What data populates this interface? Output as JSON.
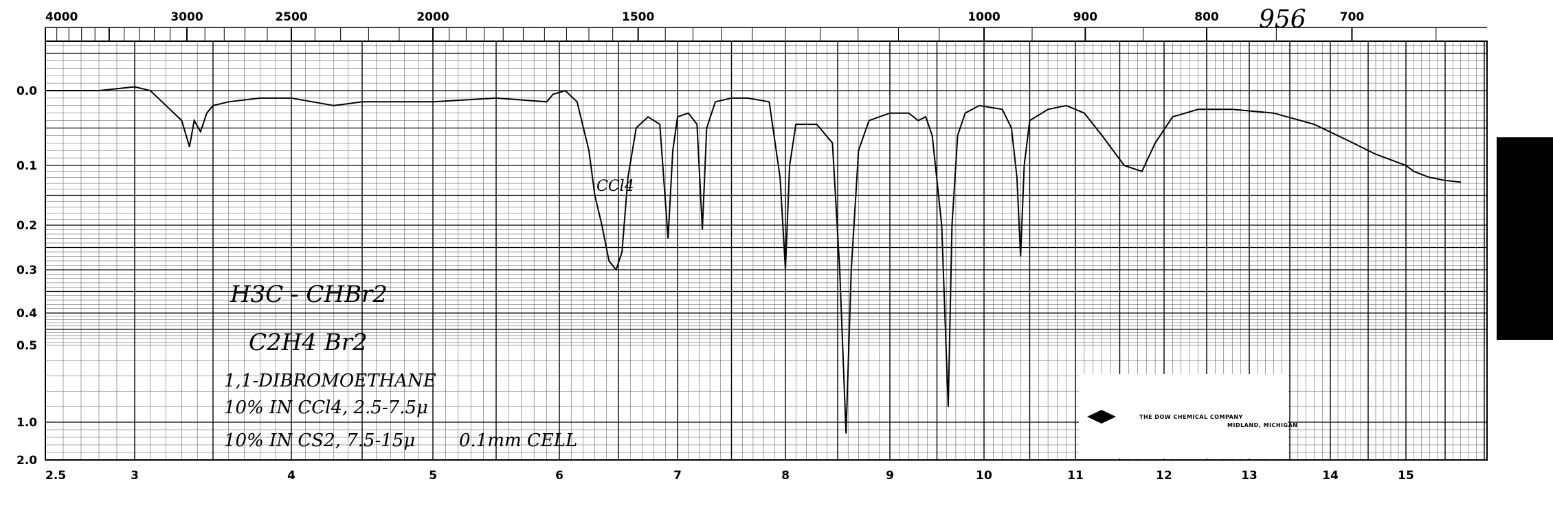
{
  "chart_data": {
    "type": "line",
    "title": "",
    "top_axis": {
      "label": "",
      "ticks": [
        "4000",
        "3000",
        "2500",
        "2000",
        "1500",
        "1000",
        "900",
        "800",
        "700"
      ],
      "values": [
        4000,
        3000,
        2500,
        2000,
        1500,
        1000,
        900,
        800,
        700
      ]
    },
    "bottom_axis": {
      "label": "",
      "ticks": [
        "2.5",
        "3",
        "4",
        "5",
        "6",
        "7",
        "8",
        "9",
        "10",
        "11",
        "12",
        "13",
        "14",
        "15"
      ],
      "values": [
        2.5,
        3,
        4,
        5,
        6,
        7,
        8,
        9,
        10,
        11,
        12,
        13,
        14,
        15
      ],
      "xlim": [
        2.5,
        16
      ]
    },
    "left_axis": {
      "label": "",
      "ticks": [
        "0.0",
        "0.1",
        "0.2",
        "0.3",
        "0.4",
        "0.5",
        "1.0",
        "2.0"
      ],
      "values": [
        0.0,
        0.1,
        0.2,
        0.3,
        0.4,
        0.5,
        1.0,
        2.0
      ],
      "scale": "absorbance (log transmittance)"
    },
    "grid": true,
    "series": [
      {
        "x_unit": "micrometers",
        "y_unit": "absorbance",
        "points": [
          [
            2.5,
            0.0
          ],
          [
            2.8,
            0.0
          ],
          [
            3.0,
            -0.005
          ],
          [
            3.1,
            0.0
          ],
          [
            3.2,
            0.02
          ],
          [
            3.3,
            0.04
          ],
          [
            3.35,
            0.075
          ],
          [
            3.38,
            0.04
          ],
          [
            3.42,
            0.055
          ],
          [
            3.46,
            0.03
          ],
          [
            3.5,
            0.02
          ],
          [
            3.6,
            0.015
          ],
          [
            3.8,
            0.01
          ],
          [
            4.0,
            0.01
          ],
          [
            4.3,
            0.02
          ],
          [
            4.5,
            0.015
          ],
          [
            5.0,
            0.015
          ],
          [
            5.5,
            0.01
          ],
          [
            5.9,
            0.015
          ],
          [
            5.95,
            0.005
          ],
          [
            6.05,
            0.0
          ],
          [
            6.15,
            0.015
          ],
          [
            6.25,
            0.08
          ],
          [
            6.3,
            0.15
          ],
          [
            6.36,
            0.2
          ],
          [
            6.42,
            0.28
          ],
          [
            6.48,
            0.3
          ],
          [
            6.53,
            0.26
          ],
          [
            6.58,
            0.12
          ],
          [
            6.65,
            0.05
          ],
          [
            6.75,
            0.035
          ],
          [
            6.85,
            0.045
          ],
          [
            6.92,
            0.23
          ],
          [
            6.96,
            0.08
          ],
          [
            7.0,
            0.035
          ],
          [
            7.1,
            0.03
          ],
          [
            7.18,
            0.045
          ],
          [
            7.23,
            0.21
          ],
          [
            7.27,
            0.05
          ],
          [
            7.35,
            0.015
          ],
          [
            7.5,
            0.01
          ],
          [
            7.65,
            0.01
          ],
          [
            7.85,
            0.015
          ],
          [
            7.95,
            0.12
          ],
          [
            8.0,
            0.3
          ],
          [
            8.04,
            0.1
          ],
          [
            8.1,
            0.045
          ],
          [
            8.3,
            0.045
          ],
          [
            8.45,
            0.07
          ],
          [
            8.52,
            0.3
          ],
          [
            8.58,
            1.3
          ],
          [
            8.63,
            0.3
          ],
          [
            8.7,
            0.08
          ],
          [
            8.8,
            0.04
          ],
          [
            9.0,
            0.03
          ],
          [
            9.2,
            0.03
          ],
          [
            9.3,
            0.04
          ],
          [
            9.38,
            0.035
          ],
          [
            9.45,
            0.06
          ],
          [
            9.55,
            0.2
          ],
          [
            9.62,
            0.9
          ],
          [
            9.66,
            0.2
          ],
          [
            9.72,
            0.06
          ],
          [
            9.8,
            0.03
          ],
          [
            9.95,
            0.02
          ],
          [
            10.2,
            0.025
          ],
          [
            10.3,
            0.05
          ],
          [
            10.36,
            0.12
          ],
          [
            10.4,
            0.27
          ],
          [
            10.44,
            0.1
          ],
          [
            10.5,
            0.04
          ],
          [
            10.7,
            0.025
          ],
          [
            10.9,
            0.02
          ],
          [
            11.1,
            0.03
          ],
          [
            11.3,
            0.06
          ],
          [
            11.55,
            0.1
          ],
          [
            11.75,
            0.11
          ],
          [
            11.9,
            0.07
          ],
          [
            12.1,
            0.035
          ],
          [
            12.4,
            0.025
          ],
          [
            12.8,
            0.025
          ],
          [
            13.3,
            0.03
          ],
          [
            13.8,
            0.045
          ],
          [
            14.2,
            0.065
          ],
          [
            14.6,
            0.085
          ],
          [
            15.0,
            0.1
          ],
          [
            15.1,
            0.11
          ],
          [
            15.3,
            0.12
          ],
          [
            15.5,
            0.125
          ],
          [
            15.7,
            0.128
          ]
        ]
      }
    ]
  },
  "annotations": {
    "chart_number": "956",
    "solvent_mark": "CCl4",
    "structure": "H3C - CHBr2",
    "formula": "C2H4 Br2",
    "name": "1,1-DIBROMOETHANE",
    "line1": "10% IN CCl4, 2.5-7.5μ",
    "line2": "10% IN CS2, 7.5-15μ",
    "cell": "0.1mm CELL"
  },
  "logo": {
    "company": "THE DOW CHEMICAL COMPANY",
    "subtitle": "MIDLAND, MICHIGAN"
  },
  "colors": {
    "grid": "#000000",
    "trace": "#000000",
    "background": "#ffffff"
  }
}
